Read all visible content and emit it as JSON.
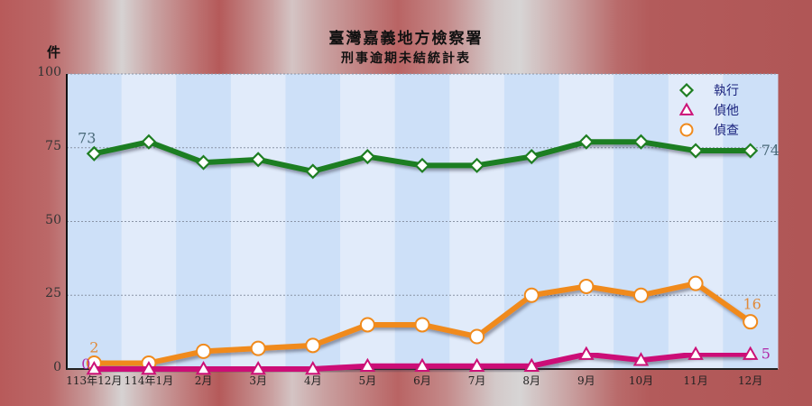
{
  "header": {
    "title": "臺灣嘉義地方檢察署",
    "subtitle": "刑事逾期未結統計表",
    "unit_label": "件"
  },
  "legend": [
    {
      "name": "執行",
      "color": "#1e7e22",
      "marker": "diamond"
    },
    {
      "name": "偵他",
      "color": "#cc1177",
      "marker": "triangle"
    },
    {
      "name": "偵查",
      "color": "#f08a1c",
      "marker": "circle"
    }
  ],
  "chart_data": {
    "type": "line",
    "title": "臺灣嘉義地方檢察署 刑事逾期未結統計表",
    "xlabel": "",
    "ylabel": "件",
    "ylim": [
      0,
      100
    ],
    "yticks": [
      0,
      25,
      50,
      75,
      100
    ],
    "grid": true,
    "legend_position": "top-right",
    "categories": [
      "113年12月",
      "114年1月",
      "2月",
      "3月",
      "4月",
      "5月",
      "6月",
      "7月",
      "8月",
      "9月",
      "10月",
      "11月",
      "12月"
    ],
    "series": [
      {
        "name": "執行",
        "values": [
          73,
          77,
          70,
          71,
          67,
          72,
          69,
          69,
          72,
          77,
          77,
          74,
          74
        ]
      },
      {
        "name": "偵他",
        "values": [
          0,
          0,
          0,
          0,
          0,
          1,
          1,
          1,
          1,
          5,
          3,
          5,
          5
        ]
      },
      {
        "name": "偵查",
        "values": [
          2,
          2,
          6,
          7,
          8,
          15,
          15,
          11,
          25,
          28,
          25,
          29,
          16
        ]
      }
    ],
    "annotations": [
      {
        "series": "執行",
        "index": 0,
        "text": "73"
      },
      {
        "series": "執行",
        "index": 12,
        "text": "74"
      },
      {
        "series": "偵他",
        "index": 0,
        "text": "0"
      },
      {
        "series": "偵他",
        "index": 12,
        "text": "5"
      },
      {
        "series": "偵查",
        "index": 0,
        "text": "2"
      },
      {
        "series": "偵查",
        "index": 12,
        "text": "16"
      }
    ]
  }
}
